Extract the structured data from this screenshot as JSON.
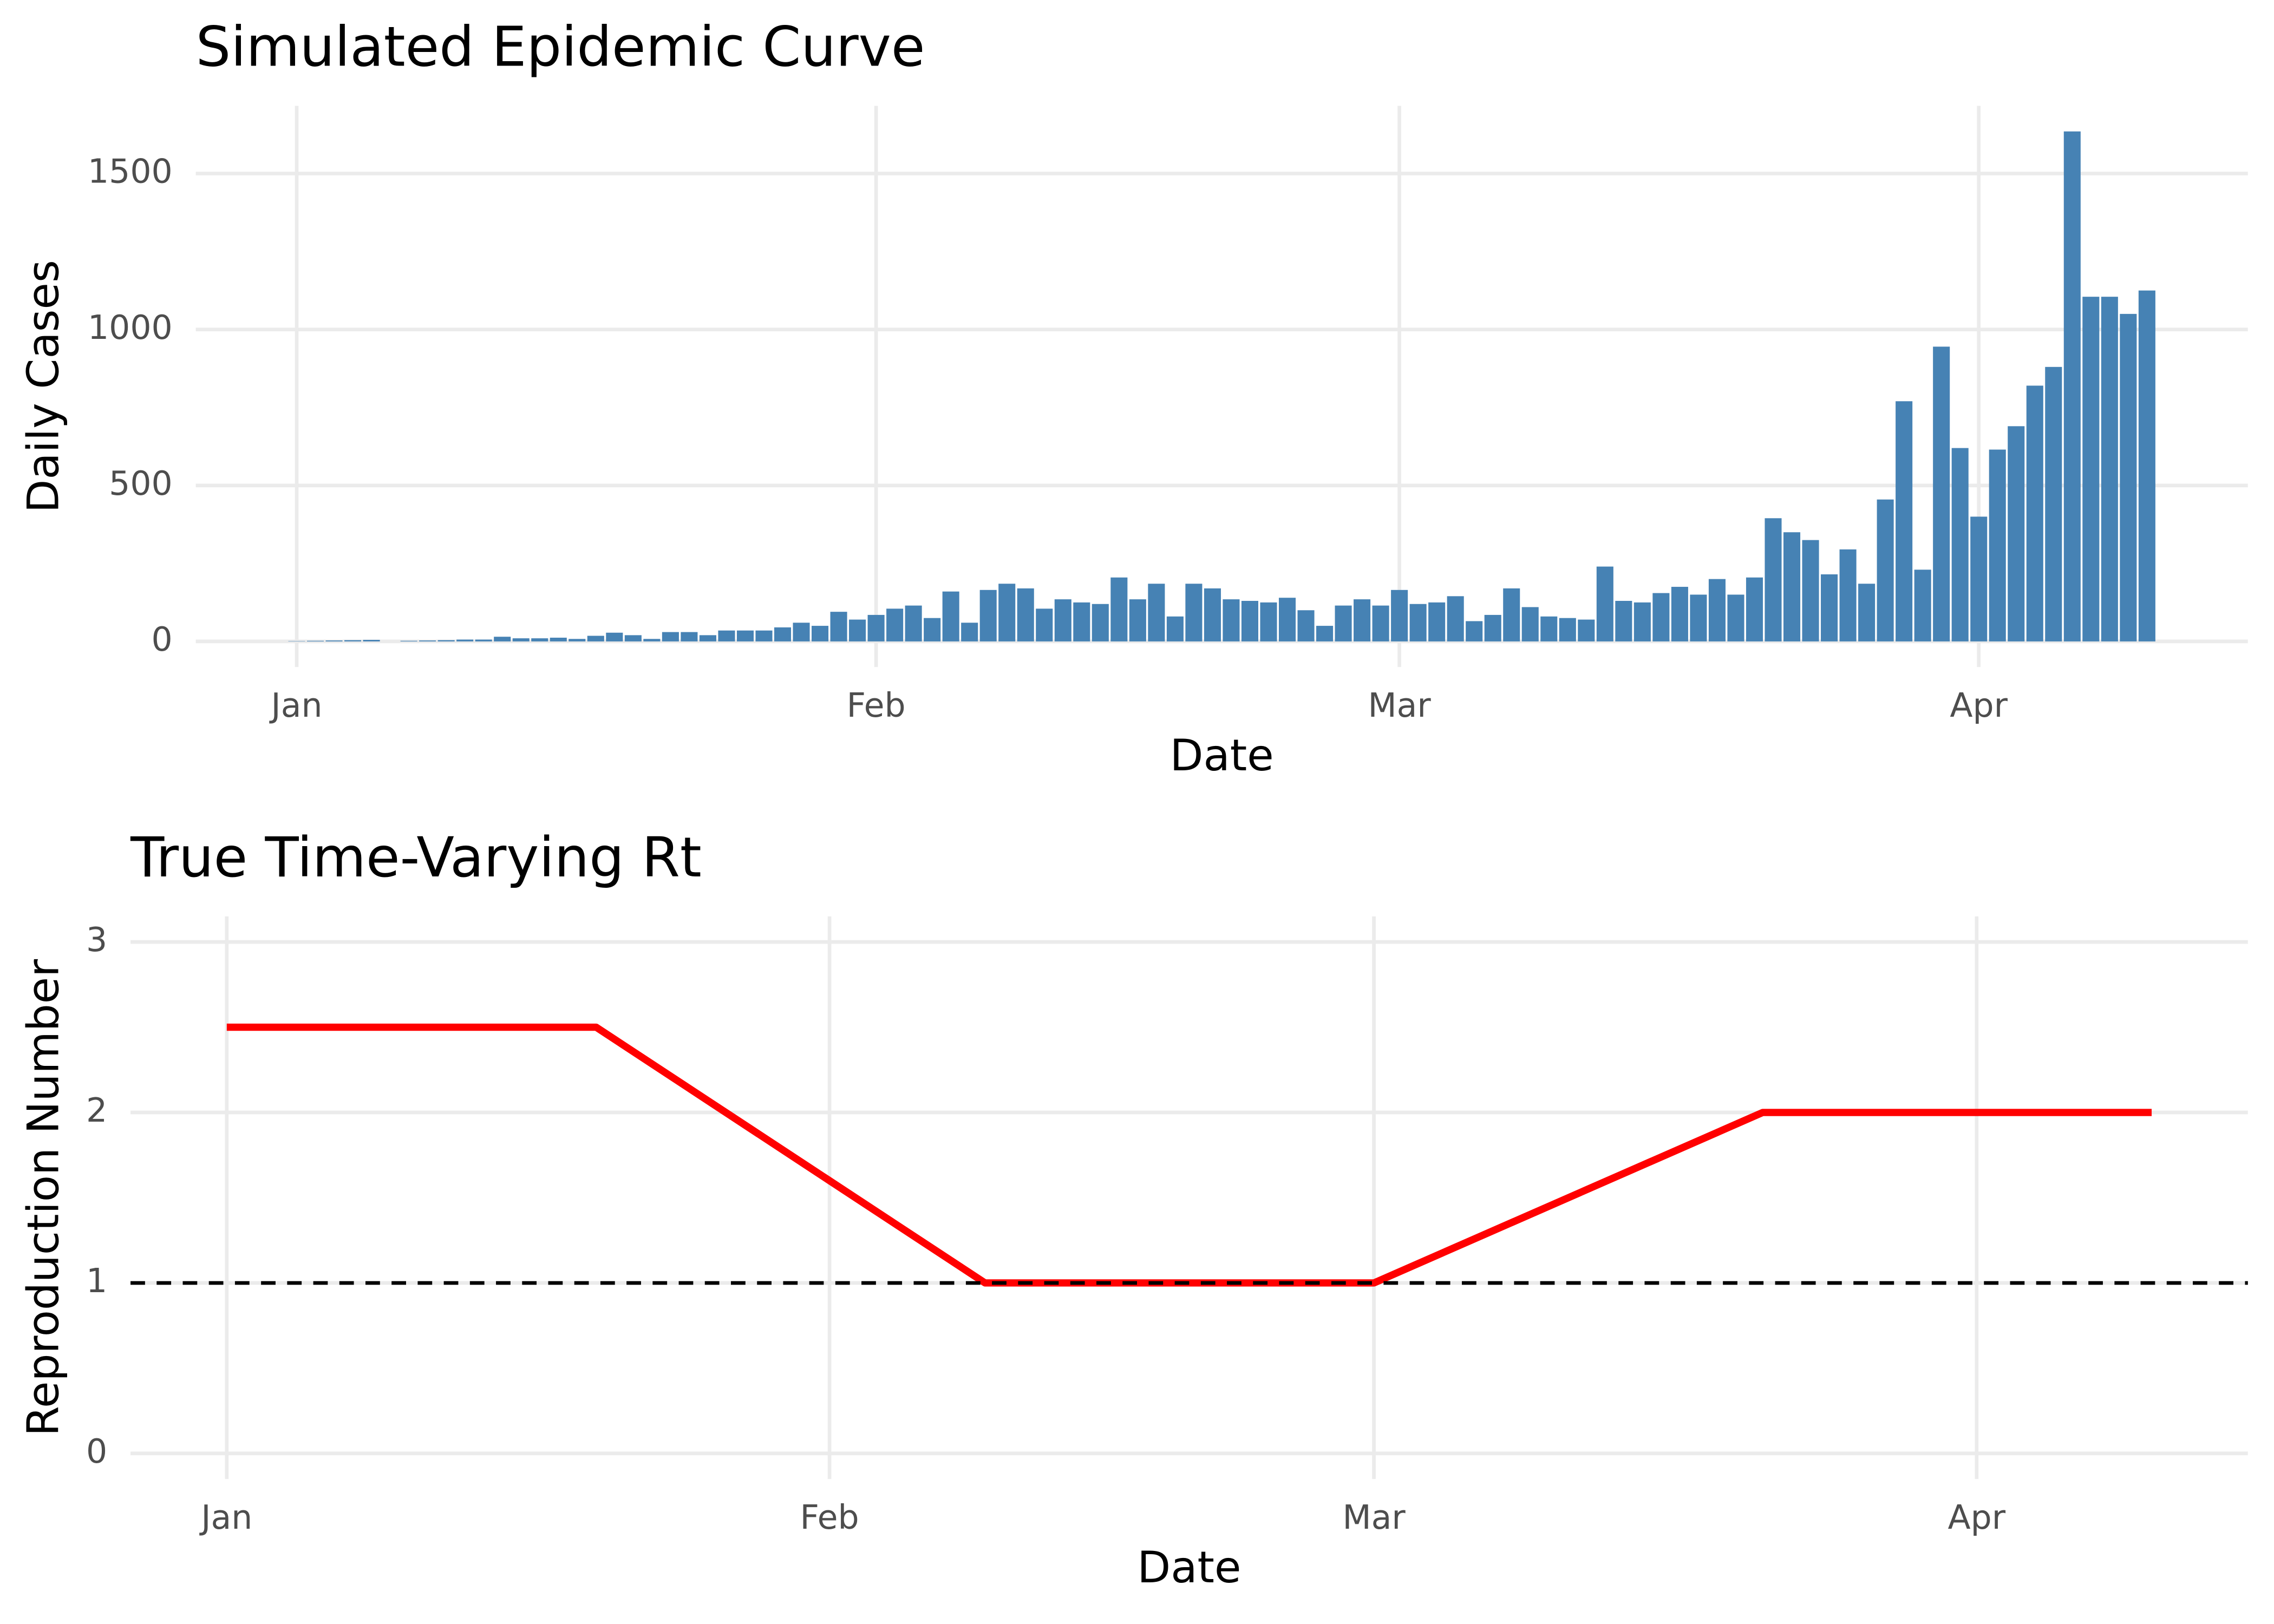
{
  "chart_data": [
    {
      "type": "bar",
      "title": "Simulated Epidemic Curve",
      "x_label": "Date",
      "y_label": "Daily Cases",
      "x": [
        0,
        1,
        2,
        3,
        4,
        5,
        6,
        7,
        8,
        9,
        10,
        11,
        12,
        13,
        14,
        15,
        16,
        17,
        18,
        19,
        20,
        21,
        22,
        23,
        24,
        25,
        26,
        27,
        28,
        29,
        30,
        31,
        32,
        33,
        34,
        35,
        36,
        37,
        38,
        39,
        40,
        41,
        42,
        43,
        44,
        45,
        46,
        47,
        48,
        49,
        50,
        51,
        52,
        53,
        54,
        55,
        56,
        57,
        58,
        59,
        60,
        61,
        62,
        63,
        64,
        65,
        66,
        67,
        68,
        69,
        70,
        71,
        72,
        73,
        74,
        75,
        76,
        77,
        78,
        79,
        80,
        81,
        82,
        83,
        84,
        85,
        86,
        87,
        88,
        89,
        90,
        91,
        92,
        93,
        94,
        95,
        96,
        97,
        98,
        99
      ],
      "values": [
        1,
        2,
        3,
        4,
        5,
        0,
        2,
        3,
        4,
        6,
        6,
        15,
        10,
        10,
        12,
        8,
        18,
        28,
        20,
        8,
        30,
        30,
        20,
        35,
        35,
        35,
        45,
        60,
        50,
        95,
        70,
        85,
        105,
        115,
        75,
        160,
        60,
        165,
        185,
        170,
        105,
        135,
        125,
        120,
        205,
        135,
        185,
        80,
        185,
        170,
        135,
        130,
        125,
        140,
        100,
        50,
        115,
        135,
        115,
        165,
        120,
        125,
        145,
        65,
        85,
        170,
        110,
        80,
        75,
        70,
        240,
        130,
        125,
        155,
        175,
        150,
        200,
        150,
        205,
        395,
        350,
        325,
        215,
        295,
        185,
        455,
        770,
        230,
        945,
        620,
        400,
        615,
        690,
        820,
        880,
        1635,
        1105,
        1105,
        1050,
        1125
      ],
      "color": "#4682b4",
      "xlim": [
        -5.4,
        104.4
      ],
      "xticks": [
        {
          "value": 0,
          "label": "Jan"
        },
        {
          "value": 31,
          "label": "Feb"
        },
        {
          "value": 59,
          "label": "Mar"
        },
        {
          "value": 90,
          "label": "Apr"
        }
      ],
      "ylim": [
        -82,
        1717
      ],
      "yticks": [
        0,
        500,
        1000,
        1500
      ],
      "grid": true
    },
    {
      "type": "line",
      "title": "True Time-Varying Rt",
      "x_label": "Date",
      "y_label": "Reproduction Number",
      "x": [
        0,
        19,
        39,
        59,
        79,
        99
      ],
      "values": [
        2.5,
        2.5,
        1,
        1,
        2,
        2
      ],
      "color": "#ff0000",
      "hline": 1,
      "hline_color": "#000000",
      "xlim": [
        -4.95,
        103.95
      ],
      "xticks": [
        {
          "value": 0,
          "label": "Jan"
        },
        {
          "value": 31,
          "label": "Feb"
        },
        {
          "value": 59,
          "label": "Mar"
        },
        {
          "value": 90,
          "label": "Apr"
        }
      ],
      "ylim": [
        -0.15,
        3.15
      ],
      "yticks": [
        0,
        1,
        2,
        3
      ],
      "grid": true
    }
  ]
}
